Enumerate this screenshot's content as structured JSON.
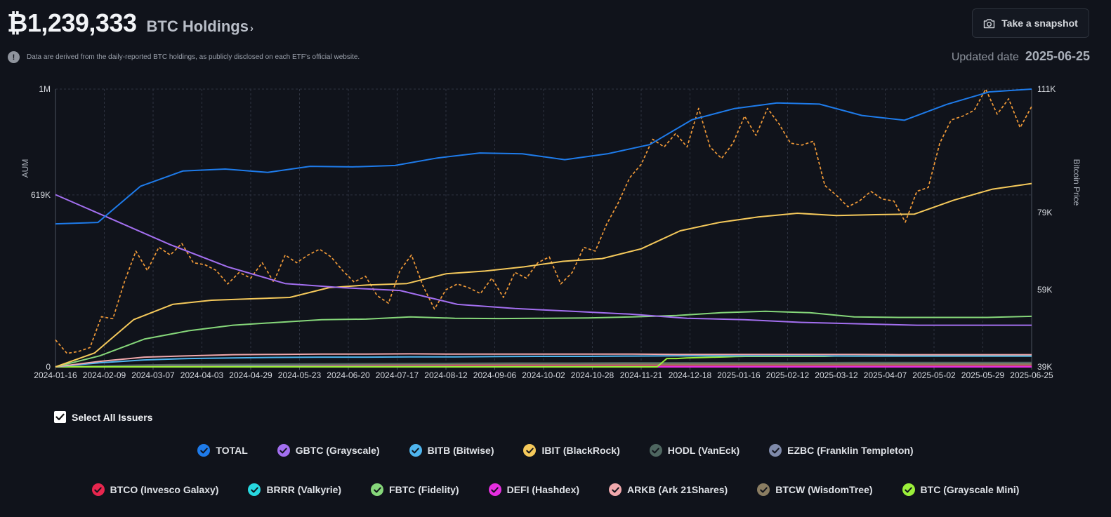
{
  "header": {
    "total_holdings": "₿1,239,333",
    "title": "BTC Holdings",
    "caret": "›",
    "note": "Data are derived from the daily-reported BTC holdings, as publicly disclosed on each ETF's official website.",
    "info_glyph": "!",
    "snapshot_label": "Take a snapshot",
    "updated_label": "Updated date",
    "updated_value": "2025-06-25"
  },
  "controls": {
    "select_all_label": "Select All Issuers"
  },
  "legend": [
    {
      "label": "TOTAL",
      "color": "#1e7bea"
    },
    {
      "label": "GBTC (Grayscale)",
      "color": "#a36ff0"
    },
    {
      "label": "BITB (Bitwise)",
      "color": "#4fb5ee"
    },
    {
      "label": "IBIT (BlackRock)",
      "color": "#f5c95b"
    },
    {
      "label": "HODL (VanEck)",
      "color": "#4e6660"
    },
    {
      "label": "EZBC (Franklin Templeton)",
      "color": "#7f8aaa"
    },
    {
      "label": "BTCO (Invesco Galaxy)",
      "color": "#e8264e"
    },
    {
      "label": "BRRR (Valkyrie)",
      "color": "#27d8e0"
    },
    {
      "label": "FBTC (Fidelity)",
      "color": "#86d77a"
    },
    {
      "label": "DEFI (Hashdex)",
      "color": "#e62ee0"
    },
    {
      "label": "ARKB (Ark 21Shares)",
      "color": "#f0a8ac"
    },
    {
      "label": "BTCW (WisdomTree)",
      "color": "#8a7d62"
    },
    {
      "label": "BTC (Grayscale Mini)",
      "color": "#9bef3a"
    }
  ],
  "chart_data": {
    "type": "line",
    "ylabel": "AUM",
    "y2label": "Bitcoin Price",
    "ylim": [
      0,
      1000000
    ],
    "y_ticks": [
      {
        "v": 0,
        "label": "0"
      },
      {
        "v": 619000,
        "label": "619K"
      },
      {
        "v": 1000000,
        "label": "1M"
      }
    ],
    "y2lim": [
      39000,
      111000
    ],
    "y2_ticks": [
      {
        "v": 39000,
        "label": "39K"
      },
      {
        "v": 59000,
        "label": "59K"
      },
      {
        "v": 79000,
        "label": "79K"
      },
      {
        "v": 111000,
        "label": "111K"
      }
    ],
    "x_ticks": [
      "2024-01-16",
      "2024-02-09",
      "2024-03-07",
      "2024-04-03",
      "2024-04-29",
      "2024-05-23",
      "2024-06-20",
      "2024-07-17",
      "2024-08-12",
      "2024-09-06",
      "2024-10-02",
      "2024-10-28",
      "2024-11-21",
      "2024-12-18",
      "2025-01-16",
      "2025-02-12",
      "2025-03-12",
      "2025-04-07",
      "2025-05-02",
      "2025-05-29",
      "2025-06-25"
    ],
    "grid": true,
    "series": [
      {
        "name": "TOTAL",
        "color": "#1e7bea",
        "axis": "left",
        "values": [
          515000,
          520000,
          650000,
          705000,
          712000,
          700000,
          722000,
          720000,
          725000,
          752000,
          770000,
          767000,
          746000,
          767000,
          800000,
          890000,
          930000,
          950000,
          946000,
          905000,
          888000,
          945000,
          990000,
          1000000
        ]
      },
      {
        "name": "GBTC (Grayscale)",
        "color": "#a36ff0",
        "axis": "left",
        "values": [
          620000,
          530000,
          440000,
          360000,
          300000,
          285000,
          275000,
          225000,
          210000,
          200000,
          190000,
          175000,
          170000,
          160000,
          155000,
          150000,
          150000,
          150000
        ]
      },
      {
        "name": "IBIT (BlackRock)",
        "color": "#f5c95b",
        "axis": "left",
        "values": [
          0,
          50000,
          170000,
          225000,
          240000,
          245000,
          250000,
          285000,
          295000,
          300000,
          335000,
          345000,
          360000,
          380000,
          390000,
          425000,
          490000,
          520000,
          540000,
          553000,
          545000,
          548000,
          550000,
          600000,
          640000,
          660000
        ]
      },
      {
        "name": "FBTC (Fidelity)",
        "color": "#86d77a",
        "axis": "left",
        "values": [
          0,
          40000,
          100000,
          130000,
          150000,
          160000,
          170000,
          172000,
          180000,
          175000,
          174000,
          175000,
          176000,
          180000,
          185000,
          195000,
          200000,
          195000,
          180000,
          178000,
          178000,
          178000,
          182000
        ]
      },
      {
        "name": "ARKB (Ark 21Shares)",
        "color": "#f0a8ac",
        "axis": "left",
        "values": [
          0,
          20000,
          35000,
          40000,
          44000,
          45000,
          46000,
          46000,
          47000,
          46000,
          46000,
          46000,
          46000,
          46000,
          45000,
          45000,
          45000,
          45000,
          45000,
          44000,
          44000,
          44000,
          44000
        ]
      },
      {
        "name": "BITB (Bitwise)",
        "color": "#4fb5ee",
        "axis": "left",
        "values": [
          0,
          15000,
          25000,
          30000,
          32000,
          34000,
          35000,
          35000,
          36000,
          36000,
          37000,
          38000,
          38000,
          39000,
          40000,
          40000,
          40000,
          40000,
          39000,
          39000,
          39000,
          39000,
          39000
        ]
      },
      {
        "name": "BTC (Grayscale Mini)",
        "color": "#9bef3a",
        "axis": "left",
        "values": [
          0,
          0,
          0,
          0,
          0,
          0,
          0,
          0,
          0,
          0,
          0,
          0,
          0,
          0,
          0,
          0,
          0,
          0,
          0,
          0,
          0,
          0,
          0,
          0,
          0,
          0,
          0,
          0,
          0,
          0,
          0,
          0,
          0,
          0,
          0,
          0,
          0,
          0,
          0,
          0,
          0,
          0,
          0,
          0,
          0,
          0,
          0,
          0,
          0,
          0,
          0,
          0,
          0,
          0,
          0,
          0,
          0,
          0,
          0,
          0,
          0,
          0,
          30000,
          30000,
          32000,
          33000,
          34000,
          35000,
          36000,
          37000,
          38000,
          38000,
          38000,
          38000,
          38000,
          38000,
          38000,
          38000,
          38000,
          39000,
          39000,
          39000,
          39000,
          39000,
          39000,
          39000,
          39000,
          39000,
          39000,
          39000,
          39000,
          39000,
          39000,
          39000,
          39000,
          39000,
          39000,
          39000,
          39000,
          39000
        ]
      },
      {
        "name": "HODL (VanEck)",
        "color": "#4e6660",
        "axis": "left",
        "values": [
          0,
          5000,
          8000,
          9000,
          10000,
          11000,
          12000,
          13000,
          14000,
          14000,
          15000,
          15000,
          15000,
          15000,
          16000,
          16000,
          16000,
          16000
        ]
      },
      {
        "name": "BTCW (WisdomTree)",
        "color": "#8a7d62",
        "axis": "left",
        "values": [
          0,
          4000,
          6000,
          7000,
          8000,
          9000,
          9000,
          10000,
          10000,
          10000,
          10000,
          10000,
          10000,
          10000,
          10000,
          10000,
          10000,
          10000
        ]
      },
      {
        "name": "EZBC (Franklin Templeton)",
        "color": "#7f8aaa",
        "axis": "left",
        "values": [
          0,
          3000,
          5000,
          6000,
          7000,
          8000,
          9000,
          10000,
          11000,
          12000,
          12000,
          12000,
          12000,
          12000,
          12000,
          12000,
          12000,
          12000
        ]
      },
      {
        "name": "BTCO (Invesco Galaxy)",
        "color": "#e8264e",
        "axis": "left",
        "values": [
          0,
          3000,
          5000,
          6000,
          6000,
          6000,
          6000,
          6000,
          6000,
          6000,
          6000,
          6000,
          6000,
          6000,
          6000,
          6000,
          6000,
          6000
        ]
      },
      {
        "name": "BRRR (Valkyrie)",
        "color": "#27d8e0",
        "axis": "left",
        "values": [
          0,
          2000,
          4000,
          5000,
          5000,
          5000,
          5000,
          5000,
          5000,
          5000,
          5000,
          5000,
          5000,
          5000,
          5000,
          5000,
          5000,
          5000
        ]
      },
      {
        "name": "DEFI (Hashdex)",
        "color": "#e62ee0",
        "axis": "left",
        "values": [
          0,
          0,
          0,
          0,
          0,
          0,
          0,
          0,
          0,
          0,
          0,
          0,
          0,
          0,
          0,
          0,
          0,
          0
        ]
      },
      {
        "name": "Bitcoin Price",
        "color": "#f19a38",
        "axis": "right",
        "dashed": true,
        "values": [
          46000,
          42500,
          43000,
          44000,
          52000,
          51500,
          61000,
          69000,
          64000,
          70000,
          68000,
          71000,
          66000,
          65500,
          64000,
          60500,
          63500,
          62000,
          66000,
          61000,
          68000,
          66000,
          68000,
          69500,
          67500,
          64000,
          61000,
          62500,
          57500,
          55500,
          64000,
          68000,
          60000,
          54000,
          59000,
          60500,
          59500,
          58000,
          62000,
          57000,
          63500,
          62000,
          66000,
          67500,
          60500,
          63500,
          70000,
          69000,
          76000,
          81500,
          88000,
          91500,
          98000,
          96000,
          99500,
          96000,
          106000,
          96000,
          93000,
          97000,
          104000,
          99000,
          106000,
          102000,
          97000,
          96500,
          97500,
          86000,
          83500,
          80500,
          82000,
          84500,
          82500,
          82000,
          76500,
          84500,
          85500,
          97000,
          103000,
          104000,
          105500,
          111000,
          104500,
          108500,
          101000,
          106500
        ]
      }
    ]
  }
}
